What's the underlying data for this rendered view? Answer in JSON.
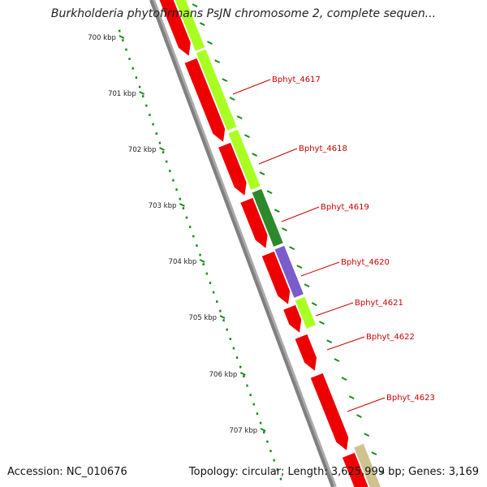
{
  "title": "Burkholderia phytofirmans PsJN chromosome 2, complete sequen...",
  "accession": "Accession: NC_010676",
  "topology": "Topology: circular; Length: 3,625,999 bp; Genes: 3,169",
  "colors": {
    "cds_red": "#ee0000",
    "lime": "#aaff22",
    "dark_green": "#2c8a2c",
    "purple": "#7a5ccc",
    "khaki": "#cfc28e",
    "tick_green": "#1a8a1a",
    "backbone": "#808080",
    "label_red": "#cc0000"
  },
  "scale_ticks": [
    "700 kbp",
    "701 kbp",
    "702 kbp",
    "703 kbp",
    "704 kbp",
    "705 kbp",
    "706 kbp",
    "707 kbp"
  ],
  "gene_labels": [
    "Bphyt_4617",
    "Bphyt_4618",
    "Bphyt_4619",
    "Bphyt_4620",
    "Bphyt_4621",
    "Bphyt_4622",
    "Bphyt_4623"
  ]
}
